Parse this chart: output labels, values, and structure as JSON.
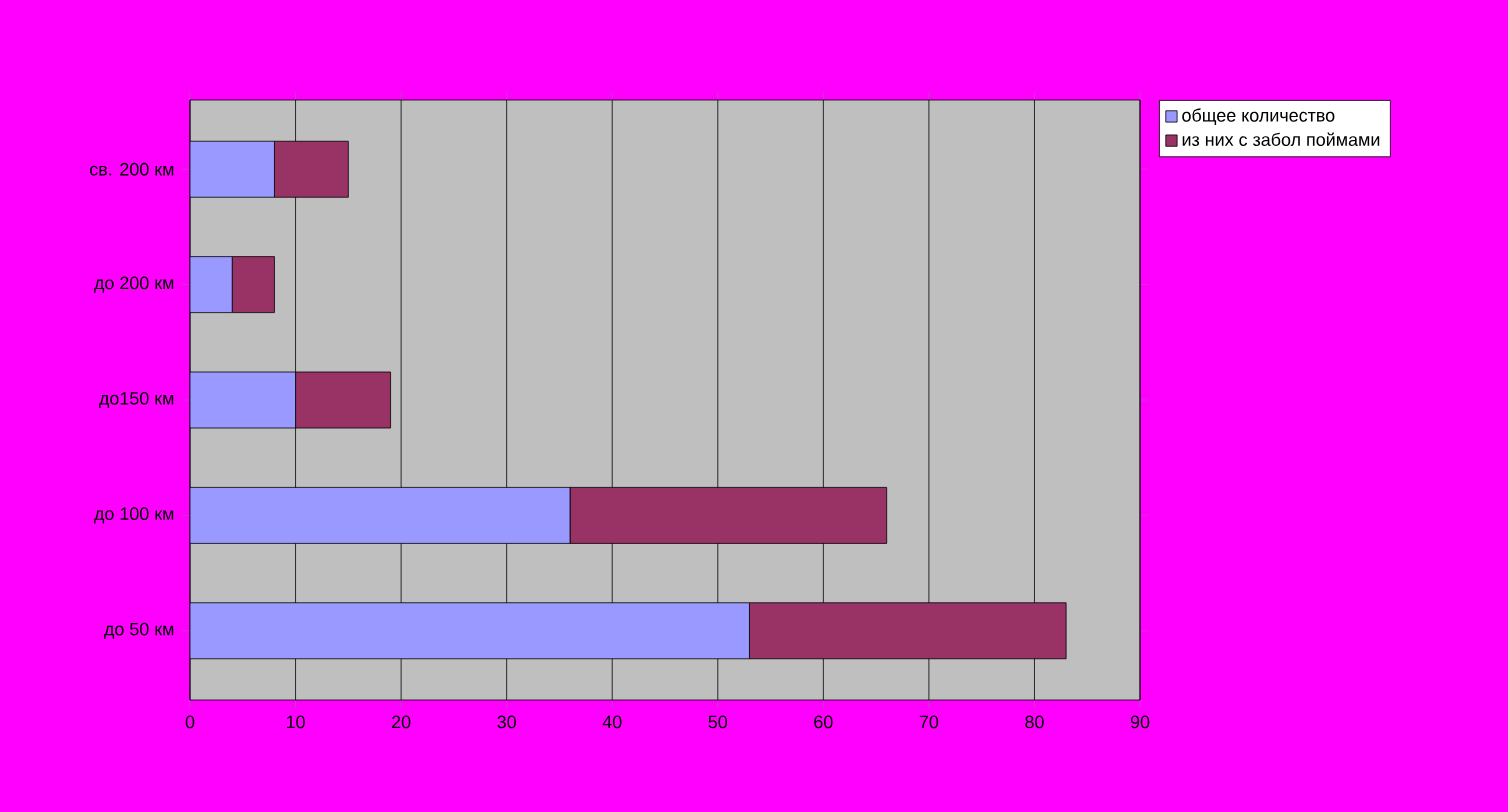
{
  "chart_data": {
    "type": "bar",
    "orientation": "horizontal",
    "stacked": true,
    "categories": [
      "св. 200 км",
      "до 200 км",
      "до150 км",
      "до 100 км",
      "до 50 км"
    ],
    "series": [
      {
        "name": "общее количество",
        "color": "#9999ff",
        "values": [
          8,
          4,
          10,
          36,
          53
        ]
      },
      {
        "name": "из них с забол поймами",
        "color": "#993366",
        "values": [
          7,
          4,
          9,
          30,
          30
        ]
      }
    ],
    "xlim": [
      0,
      90
    ],
    "xticks": [
      0,
      10,
      20,
      30,
      40,
      50,
      60,
      70,
      80,
      90
    ],
    "grid": "x",
    "legend": "top right"
  }
}
